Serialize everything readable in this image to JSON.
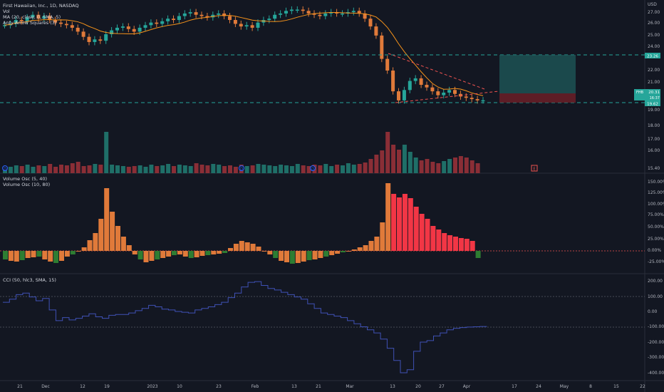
{
  "header": {
    "symbol_line": "First Hawaiian, Inc., 1D, NASDAQ",
    "vol_label": "Vol",
    "ma_label": "MA (20, close, 0, SMA, 5)",
    "anty_label": "Anty Arrow Squares (3)"
  },
  "osc_legend": {
    "line1": "Volume Osc (5, 40)",
    "line2": "Volume Osc (10, 80)"
  },
  "cci_legend": "CCI (50, hlc3, SMA, 15)",
  "price_axis": {
    "currency": "USD",
    "ticks": [
      "27.00",
      "26.00",
      "25.00",
      "24.00",
      "22.00",
      "21.00",
      "20.00",
      "19.00",
      "18.00",
      "17.00",
      "16.00",
      "15.40"
    ]
  },
  "price_labels": {
    "upper": "23.26",
    "ticker": "FHB",
    "current": "20.31",
    "countdown": "16:37",
    "lower": "19.62"
  },
  "osc_axis": [
    "150.00%",
    "125.00%",
    "100.00%",
    "75.00%",
    "50.00%",
    "25.00%",
    "0.00%",
    "-25.00%"
  ],
  "cci_axis": [
    "200.00",
    "100.00",
    "0.00",
    "-100.00",
    "-200.00",
    "-300.00",
    "-400.00"
  ],
  "time_axis": [
    "21",
    "Dec",
    "12",
    "19",
    "2023",
    "10",
    "23",
    "Feb",
    "13",
    "21",
    "Mar",
    "13",
    "20",
    "27",
    "Apr",
    "17",
    "24",
    "May",
    "8",
    "15",
    "22"
  ],
  "markers": {
    "dividend": "D",
    "earnings": "E"
  },
  "colors": {
    "up": "#26a69a",
    "down": "#ef5350",
    "ma": "#f7931a",
    "level": "#26a69a",
    "cci": "#3f51b5",
    "osc_a": "#e07a3a",
    "osc_b": "#f23645",
    "osc_c": "#2e7d32"
  },
  "chart_data": {
    "type": "candlestick",
    "price_series": [
      26.1,
      26.2,
      26.5,
      26.4,
      26.7,
      26.9,
      26.6,
      26.8,
      26.5,
      26.3,
      26.2,
      26.1,
      25.9,
      25.6,
      25.2,
      24.8,
      25.0,
      24.9,
      25.4,
      25.7,
      25.9,
      26.0,
      25.8,
      25.6,
      25.9,
      26.1,
      26.3,
      26.2,
      26.4,
      26.6,
      26.5,
      26.8,
      27.0,
      27.1,
      26.9,
      26.8,
      26.7,
      26.9,
      27.0,
      26.8,
      26.5,
      26.2,
      26.0,
      26.1,
      25.9,
      26.3,
      26.5,
      26.6,
      26.9,
      27.0,
      27.2,
      27.3,
      27.3,
      27.2,
      27.0,
      26.9,
      26.8,
      27.0,
      27.1,
      27.0,
      27.0,
      27.1,
      27.2,
      27.0,
      26.6,
      26.0,
      25.3,
      23.5,
      22.6,
      21.0,
      20.3,
      21.1,
      21.8,
      22.0,
      21.5,
      21.3,
      21.0,
      20.7,
      20.9,
      21.1,
      20.8,
      20.6,
      20.5,
      20.4,
      20.3,
      20.31
    ],
    "ma_level": "20-day SMA",
    "levels": {
      "upper": 23.26,
      "lower": 19.62
    }
  }
}
